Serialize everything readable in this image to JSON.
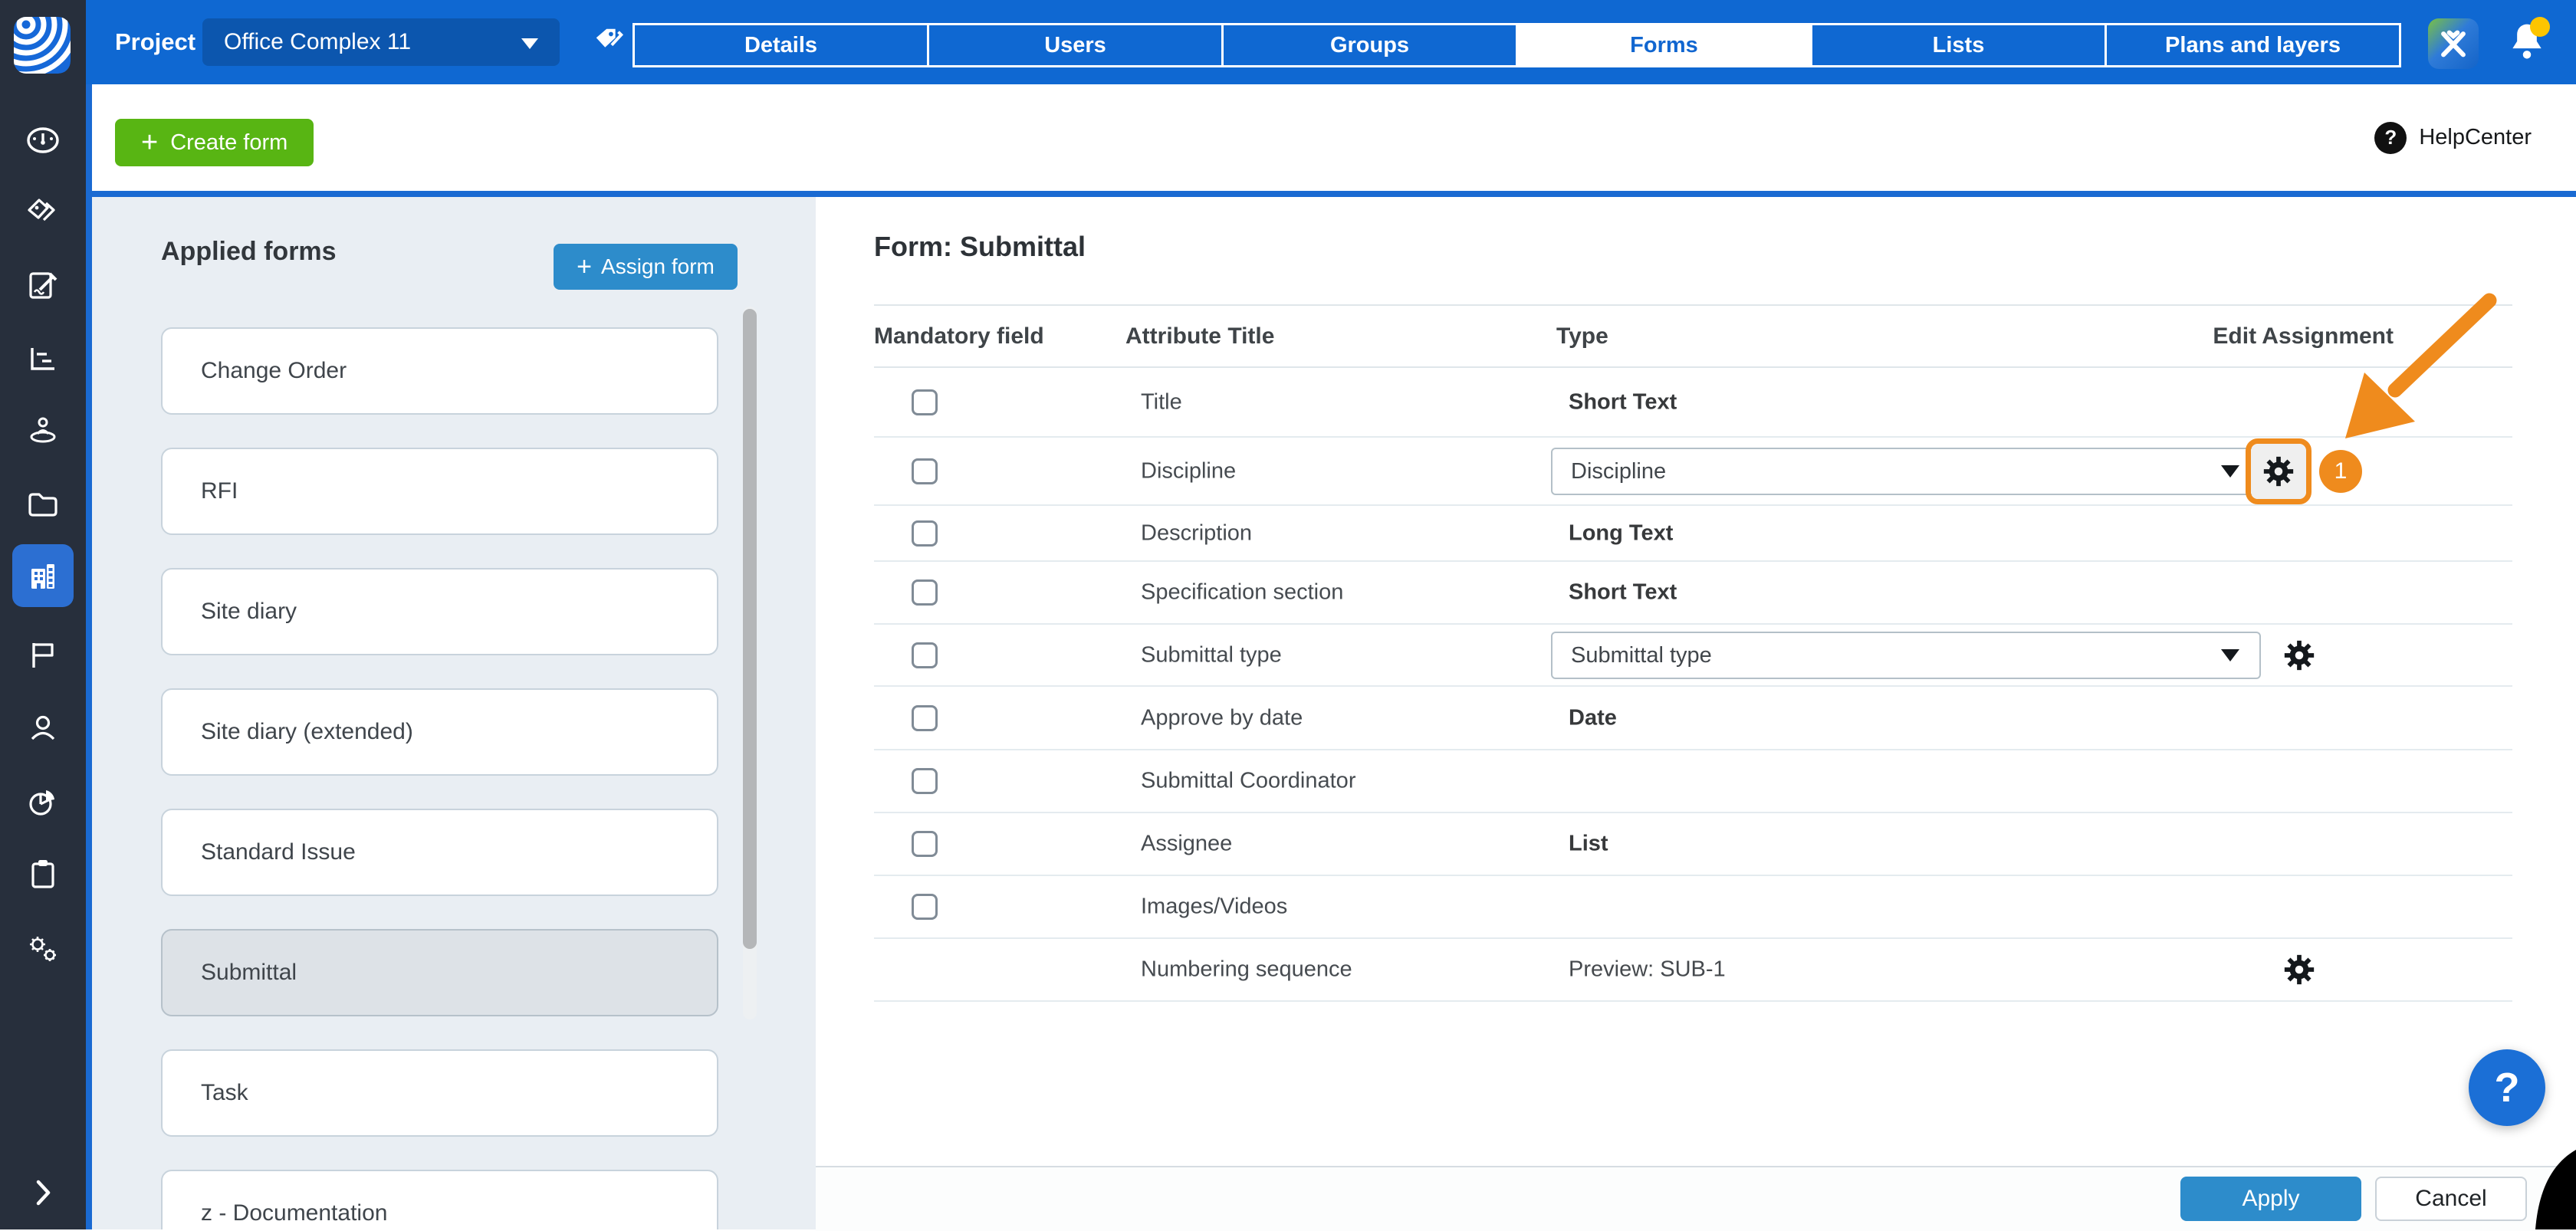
{
  "colors": {
    "topbar_blue": "#0f68d2",
    "frame_blue": "#1a6ad2",
    "button_blue": "#2d8ccb",
    "active_tab_text": "#1166d0",
    "create_green": "#58b513",
    "annotation_orange": "#ef8b1d",
    "sidebar_dark": "#272f3c",
    "panel_bg": "#e9eef3",
    "selected_card_bg": "#dde2e7",
    "notification_yellow": "#fdc500",
    "help_fab_blue": "#1b6fd6"
  },
  "topbar": {
    "project_label": "Project",
    "project_name": "Office Complex 11",
    "tabs": [
      {
        "label": "Details"
      },
      {
        "label": "Users"
      },
      {
        "label": "Groups"
      },
      {
        "label": "Forms",
        "active": true
      },
      {
        "label": "Lists"
      },
      {
        "label": "Plans and layers"
      }
    ],
    "icons": [
      "tag-icon",
      "apps-icon",
      "notifications-bell-icon"
    ],
    "notification_dot": true
  },
  "sidebar": {
    "items": [
      {
        "icon": "dashboard"
      },
      {
        "icon": "tags"
      },
      {
        "icon": "forms"
      },
      {
        "icon": "reports"
      },
      {
        "icon": "site-presence"
      },
      {
        "icon": "documents"
      },
      {
        "icon": "projects",
        "active": true
      },
      {
        "icon": "flags"
      },
      {
        "icon": "profile"
      },
      {
        "icon": "analytics"
      },
      {
        "icon": "tasks"
      },
      {
        "icon": "settings"
      }
    ],
    "collapse_icon": "chevron-right"
  },
  "toolbar": {
    "create_plus": "+",
    "create_label": "Create form",
    "help_icon": "?",
    "help_label": "HelpCenter"
  },
  "panel": {
    "title": "Applied forms",
    "assign_plus": "+",
    "assign_label": "Assign form",
    "forms": [
      {
        "label": "Change Order"
      },
      {
        "label": "RFI"
      },
      {
        "label": "Site diary"
      },
      {
        "label": "Site diary (extended)"
      },
      {
        "label": "Standard Issue"
      },
      {
        "label": "Submittal",
        "selected": true
      },
      {
        "label": "Task"
      },
      {
        "label": "z - Documentation"
      }
    ]
  },
  "main": {
    "title": "Form: Submittal",
    "columns": [
      "Mandatory field",
      "Attribute Title",
      "Type",
      "Edit Assignment"
    ],
    "rows": [
      {
        "mandatory": true,
        "attribute": "Title",
        "type": "Short Text",
        "bold": true
      },
      {
        "mandatory": true,
        "attribute": "Discipline",
        "dropdown": "Discipline",
        "gear": true,
        "highlighted": true,
        "badge": "1"
      },
      {
        "mandatory": true,
        "attribute": "Description",
        "type": "Long Text",
        "bold": true
      },
      {
        "mandatory": true,
        "attribute": "Specification section",
        "type": "Short Text",
        "bold": true
      },
      {
        "mandatory": true,
        "attribute": "Submittal type",
        "dropdown": "Submittal type",
        "gear": true
      },
      {
        "mandatory": true,
        "attribute": "Approve by date",
        "type": "Date",
        "bold": true
      },
      {
        "mandatory": true,
        "attribute": "Submittal Coordinator"
      },
      {
        "mandatory": true,
        "attribute": "Assignee",
        "type": "List",
        "bold": true
      },
      {
        "mandatory": true,
        "attribute": "Images/Videos"
      },
      {
        "mandatory": false,
        "attribute": "Numbering sequence",
        "type": "Preview: SUB-1",
        "bold": false,
        "gear": true
      }
    ]
  },
  "footer": {
    "apply": "Apply",
    "cancel": "Cancel"
  },
  "help_fab": "?"
}
